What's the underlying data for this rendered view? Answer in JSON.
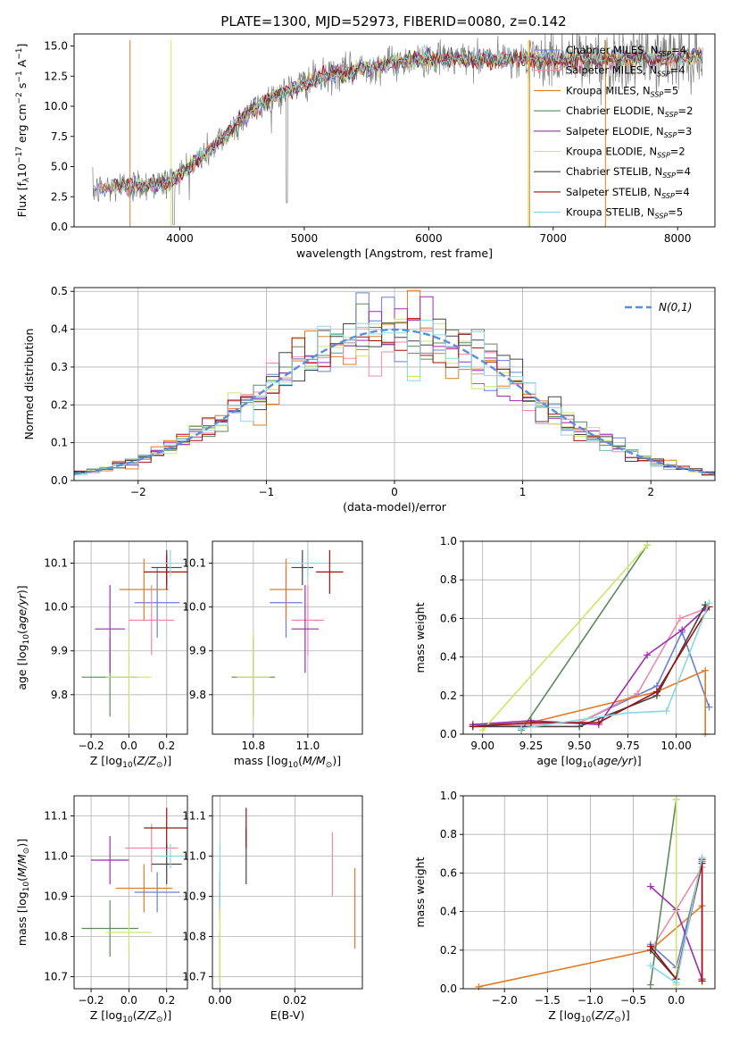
{
  "figure": {
    "title": "PLATE=1300, MJD=52973, FIBERID=0080, z=0.142"
  },
  "colors": {
    "chabrier_miles": "#6a7fd6",
    "salpeter_miles": "#f08aa8",
    "kroupa_miles": "#e07b22",
    "chabrier_elodie": "#5c8a5c",
    "salpeter_elodie": "#9a2fae",
    "kroupa_elodie": "#c9e86a",
    "chabrier_stelib": "#444444",
    "salpeter_stelib": "#a01010",
    "kroupa_stelib": "#88d8e0",
    "normal": "#5b8ed8"
  },
  "legend_labels": {
    "chabrier_miles": "Chabrier MILES, N",
    "salpeter_miles": "Salpeter MILES, N",
    "kroupa_miles": "Kroupa MILES, N",
    "chabrier_elodie": "Chabrier ELODIE, N",
    "salpeter_elodie": "Salpeter ELODIE, N",
    "kroupa_elodie": "Kroupa ELODIE, N",
    "chabrier_stelib": "Chabrier STELIB, N",
    "salpeter_stelib": "Salpeter STELIB, N",
    "kroupa_stelib": "Kroupa STELIB, N",
    "ssp_sub": "SSP",
    "nssp": [
      "=4",
      "=4",
      "=5",
      "=2",
      "=3",
      "=2",
      "=4",
      "=4",
      "=5"
    ]
  },
  "chart_data": [
    {
      "id": "spectrum",
      "type": "line",
      "xlabel": "wavelength [Angstrom, rest frame]",
      "ylabel": "Flux [f",
      "ylabel_parts": [
        "Flux [f",
        "λ",
        "10",
        "−17",
        " erg cm",
        "−2",
        " s",
        "−1",
        " A",
        "−1",
        "]"
      ],
      "xlim": [
        3150,
        8300
      ],
      "ylim": [
        0,
        16
      ],
      "xticks": [
        4000,
        5000,
        6000,
        7000,
        8000
      ],
      "yticks": [
        0.0,
        2.5,
        5.0,
        7.5,
        10.0,
        12.5,
        15.0
      ],
      "continuum": [
        [
          3300,
          3.0
        ],
        [
          3500,
          3.4
        ],
        [
          3700,
          3.5
        ],
        [
          3900,
          3.6
        ],
        [
          4000,
          4.5
        ],
        [
          4100,
          5.2
        ],
        [
          4200,
          6.0
        ],
        [
          4300,
          7.0
        ],
        [
          4400,
          8.0
        ],
        [
          4500,
          9.0
        ],
        [
          4700,
          10.5
        ],
        [
          4900,
          11.5
        ],
        [
          5100,
          12.3
        ],
        [
          5300,
          12.8
        ],
        [
          5500,
          13.2
        ],
        [
          5700,
          13.6
        ],
        [
          6000,
          13.9
        ],
        [
          6300,
          13.9
        ],
        [
          6600,
          13.9
        ],
        [
          7000,
          13.9
        ],
        [
          7300,
          13.9
        ],
        [
          7600,
          14.0
        ],
        [
          8000,
          14.1
        ],
        [
          8200,
          14.2
        ]
      ]
    },
    {
      "id": "residuals",
      "type": "histogram",
      "xlabel": "(data-model)/error",
      "ylabel": "Normed distribution",
      "xlim": [
        -2.5,
        2.5
      ],
      "ylim": [
        0,
        0.51
      ],
      "xticks": [
        -2,
        -1,
        0,
        1,
        2
      ],
      "yticks": [
        0.0,
        0.1,
        0.2,
        0.3,
        0.4,
        0.5
      ],
      "bin_width": 0.1,
      "legend": "N(0,1)"
    },
    {
      "id": "age_vs_Z",
      "type": "scatter",
      "xlabel": "Z [log",
      "ylabel": "age  [log",
      "xlim": [
        -0.29,
        0.31
      ],
      "ylim": [
        9.71,
        10.15
      ],
      "xticks": [
        -0.2,
        0.0,
        0.2
      ],
      "xtick_labels": [
        "−0.2",
        "0.0",
        "0.2"
      ],
      "yticks": [
        9.8,
        9.9,
        10.0,
        10.1
      ],
      "points": [
        {
          "series": "chabrier_miles",
          "x": 0.15,
          "y": 10.01,
          "ex": 0.12,
          "ey": 0.08
        },
        {
          "series": "salpeter_miles",
          "x": 0.12,
          "y": 9.97,
          "ex": 0.12,
          "ey": 0.08
        },
        {
          "series": "kroupa_miles",
          "x": 0.08,
          "y": 10.04,
          "ex": 0.13,
          "ey": 0.07
        },
        {
          "series": "chabrier_elodie",
          "x": -0.1,
          "y": 9.84,
          "ex": 0.15,
          "ey": 0.09
        },
        {
          "series": "salpeter_elodie",
          "x": -0.1,
          "y": 9.95,
          "ex": 0.08,
          "ey": 0.1
        },
        {
          "series": "kroupa_elodie",
          "x": 0.0,
          "y": 9.84,
          "ex": 0.12,
          "ey": 0.1
        },
        {
          "series": "chabrier_stelib",
          "x": 0.2,
          "y": 10.09,
          "ex": 0.08,
          "ey": 0.04
        },
        {
          "series": "salpeter_stelib",
          "x": 0.2,
          "y": 10.08,
          "ex": 0.12,
          "ey": 0.04
        },
        {
          "series": "kroupa_stelib",
          "x": 0.22,
          "y": 10.1,
          "ex": 0.08,
          "ey": 0.03
        }
      ]
    },
    {
      "id": "age_vs_mass",
      "type": "scatter",
      "xlabel": "mass [log",
      "xlim": [
        10.65,
        11.2
      ],
      "ylim": [
        9.71,
        10.15
      ],
      "xticks": [
        10.8,
        11.0
      ],
      "yticks": [
        9.8,
        9.9,
        10.0,
        10.1
      ],
      "points": [
        {
          "series": "chabrier_miles",
          "x": 10.92,
          "y": 10.01,
          "ex": 0.06,
          "ey": 0.08
        },
        {
          "series": "salpeter_miles",
          "x": 11.0,
          "y": 9.97,
          "ex": 0.06,
          "ey": 0.08
        },
        {
          "series": "kroupa_miles",
          "x": 10.92,
          "y": 10.04,
          "ex": 0.06,
          "ey": 0.07
        },
        {
          "series": "chabrier_elodie",
          "x": 10.8,
          "y": 9.84,
          "ex": 0.08,
          "ey": 0.09
        },
        {
          "series": "salpeter_elodie",
          "x": 10.99,
          "y": 9.95,
          "ex": 0.05,
          "ey": 0.1
        },
        {
          "series": "kroupa_elodie",
          "x": 10.8,
          "y": 9.84,
          "ex": 0.06,
          "ey": 0.1
        },
        {
          "series": "chabrier_stelib",
          "x": 10.98,
          "y": 10.09,
          "ex": 0.04,
          "ey": 0.04
        },
        {
          "series": "salpeter_stelib",
          "x": 11.08,
          "y": 10.08,
          "ex": 0.05,
          "ey": 0.05
        },
        {
          "series": "kroupa_stelib",
          "x": 11.0,
          "y": 10.1,
          "ex": 0.05,
          "ey": 0.03
        }
      ]
    },
    {
      "id": "weight_vs_age",
      "type": "line",
      "xlabel": "age  [log",
      "ylabel": "mass weight",
      "xlim": [
        8.9,
        10.2
      ],
      "ylim": [
        0,
        1
      ],
      "xticks": [
        9.0,
        9.25,
        9.5,
        9.75,
        10.0
      ],
      "xtick_labels": [
        "9.00",
        "9.25",
        "9.50",
        "9.75",
        "10.00"
      ],
      "yticks": [
        0.0,
        0.2,
        0.4,
        0.6,
        0.8,
        1.0
      ],
      "series": [
        {
          "series": "chabrier_miles",
          "x": [
            8.95,
            9.5,
            9.9,
            10.03,
            10.17
          ],
          "y": [
            0.05,
            0.06,
            0.25,
            0.53,
            0.14
          ]
        },
        {
          "series": "salpeter_miles",
          "x": [
            8.95,
            9.5,
            9.8,
            10.02,
            10.15
          ],
          "y": [
            0.04,
            0.06,
            0.21,
            0.6,
            0.65
          ]
        },
        {
          "series": "kroupa_miles",
          "x": [
            8.95,
            9.25,
            9.9,
            10.15,
            10.15
          ],
          "y": [
            0.04,
            0.06,
            0.22,
            0.33,
            0.0
          ]
        },
        {
          "series": "chabrier_elodie",
          "x": [
            9.2,
            9.85
          ],
          "y": [
            0.02,
            0.98
          ]
        },
        {
          "series": "salpeter_elodie",
          "x": [
            8.95,
            9.25,
            9.6,
            9.85,
            10.03,
            10.15
          ],
          "y": [
            0.05,
            0.07,
            0.05,
            0.41,
            0.54,
            0.65
          ]
        },
        {
          "series": "kroupa_elodie",
          "x": [
            9.0,
            9.85
          ],
          "y": [
            0.02,
            0.98
          ]
        },
        {
          "series": "chabrier_stelib",
          "x": [
            8.95,
            9.5,
            9.9,
            10.15
          ],
          "y": [
            0.04,
            0.04,
            0.2,
            0.67
          ]
        },
        {
          "series": "salpeter_stelib",
          "x": [
            8.95,
            9.25,
            9.6,
            9.9,
            10.17
          ],
          "y": [
            0.04,
            0.06,
            0.06,
            0.22,
            0.66
          ]
        },
        {
          "series": "kroupa_stelib",
          "x": [
            9.2,
            9.75,
            9.95,
            10.17
          ],
          "y": [
            0.03,
            0.11,
            0.12,
            0.68
          ]
        }
      ]
    },
    {
      "id": "mass_vs_Z",
      "type": "scatter",
      "xlabel": "Z [log",
      "ylabel": "mass [log",
      "xlim": [
        -0.29,
        0.31
      ],
      "ylim": [
        10.67,
        11.15
      ],
      "xticks": [
        -0.2,
        0.0,
        0.2
      ],
      "xtick_labels": [
        "−0.2",
        "0.0",
        "0.2"
      ],
      "yticks": [
        10.7,
        10.8,
        10.9,
        11.0,
        11.1
      ],
      "points": [
        {
          "series": "chabrier_miles",
          "x": 0.15,
          "y": 10.91,
          "ex": 0.12,
          "ey": 0.05
        },
        {
          "series": "salpeter_miles",
          "x": 0.12,
          "y": 11.02,
          "ex": 0.14,
          "ey": 0.06
        },
        {
          "series": "kroupa_miles",
          "x": 0.08,
          "y": 10.92,
          "ex": 0.15,
          "ey": 0.06
        },
        {
          "series": "chabrier_elodie",
          "x": -0.1,
          "y": 10.82,
          "ex": 0.15,
          "ey": 0.07
        },
        {
          "series": "salpeter_elodie",
          "x": -0.1,
          "y": 10.99,
          "ex": 0.1,
          "ey": 0.06
        },
        {
          "series": "kroupa_elodie",
          "x": 0.0,
          "y": 10.81,
          "ex": 0.12,
          "ey": 0.06
        },
        {
          "series": "chabrier_stelib",
          "x": 0.2,
          "y": 10.98,
          "ex": 0.08,
          "ey": 0.05
        },
        {
          "series": "salpeter_stelib",
          "x": 0.2,
          "y": 11.07,
          "ex": 0.12,
          "ey": 0.05
        },
        {
          "series": "kroupa_stelib",
          "x": 0.22,
          "y": 11.0,
          "ex": 0.08,
          "ey": 0.03
        }
      ]
    },
    {
      "id": "mass_vs_ebv",
      "type": "scatter",
      "xlabel": "E(B-V)",
      "xlim": [
        -0.002,
        0.038
      ],
      "ylim": [
        10.67,
        11.15
      ],
      "xticks": [
        0.0,
        0.02
      ],
      "xtick_labels": [
        "0.00",
        "0.02"
      ],
      "yticks": [
        10.7,
        10.8,
        10.9,
        11.0,
        11.1
      ],
      "points": [
        {
          "series": "chabrier_miles",
          "x": 0.0,
          "y": 10.91,
          "ex": 0,
          "ey": 0.05
        },
        {
          "series": "salpeter_miles",
          "x": 0.03,
          "y": 10.98,
          "ex": 0,
          "ey": 0.08
        },
        {
          "series": "kroupa_miles",
          "x": 0.036,
          "y": 10.87,
          "ex": 0,
          "ey": 0.1
        },
        {
          "series": "chabrier_elodie",
          "x": 0.0,
          "y": 10.75,
          "ex": 0,
          "ey": 0.06
        },
        {
          "series": "salpeter_elodie",
          "x": 0.0,
          "y": 10.89,
          "ex": 0,
          "ey": 0.05
        },
        {
          "series": "kroupa_elodie",
          "x": 0.0,
          "y": 10.79,
          "ex": 0,
          "ey": 0.1
        },
        {
          "series": "chabrier_stelib",
          "x": 0.007,
          "y": 11.0,
          "ex": 0,
          "ey": 0.07
        },
        {
          "series": "salpeter_stelib",
          "x": 0.007,
          "y": 11.07,
          "ex": 0,
          "ey": 0.05
        },
        {
          "series": "kroupa_stelib",
          "x": 0.0,
          "y": 10.95,
          "ex": 0,
          "ey": 0.08
        }
      ]
    },
    {
      "id": "weight_vs_Z",
      "type": "line",
      "xlabel": "Z [log",
      "ylabel": "mass weight",
      "xlim": [
        -2.48,
        0.45
      ],
      "ylim": [
        0,
        1
      ],
      "xticks": [
        -2.0,
        -1.5,
        -1.0,
        -0.5,
        0.0
      ],
      "xtick_labels": [
        "−2.0",
        "−1.5",
        "−1.0",
        "−0.5",
        "0.0"
      ],
      "yticks": [
        0.0,
        0.2,
        0.4,
        0.6,
        0.8,
        1.0
      ],
      "series": [
        {
          "series": "chabrier_miles",
          "x": [
            -0.3,
            0.0,
            0.3,
            0.3
          ],
          "y": [
            0.23,
            0.11,
            0.66,
            0.05
          ]
        },
        {
          "series": "salpeter_miles",
          "x": [
            -0.3,
            0.0,
            0.3
          ],
          "y": [
            0.2,
            0.41,
            0.63
          ]
        },
        {
          "series": "kroupa_miles",
          "x": [
            -2.3,
            -0.3,
            0.3,
            0.3
          ],
          "y": [
            0.01,
            0.2,
            0.43,
            0.04
          ]
        },
        {
          "series": "chabrier_elodie",
          "x": [
            -0.3,
            0.0
          ],
          "y": [
            0.02,
            0.98
          ]
        },
        {
          "series": "salpeter_elodie",
          "x": [
            -0.3,
            0.0,
            0.3
          ],
          "y": [
            0.53,
            0.41,
            0.05
          ]
        },
        {
          "series": "kroupa_elodie",
          "x": [
            0.0,
            0.0
          ],
          "y": [
            0.02,
            0.98
          ]
        },
        {
          "series": "chabrier_stelib",
          "x": [
            -0.3,
            0.0,
            0.3
          ],
          "y": [
            0.2,
            0.05,
            0.67
          ]
        },
        {
          "series": "salpeter_stelib",
          "x": [
            -0.3,
            0.0,
            0.3,
            0.3
          ],
          "y": [
            0.22,
            0.05,
            0.65,
            0.04
          ]
        },
        {
          "series": "kroupa_stelib",
          "x": [
            -0.3,
            0.0,
            0.3
          ],
          "y": [
            0.12,
            0.03,
            0.68
          ]
        }
      ]
    }
  ]
}
